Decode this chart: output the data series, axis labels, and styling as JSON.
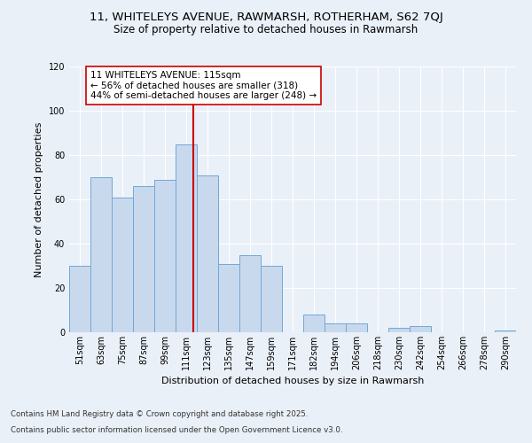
{
  "title_line1": "11, WHITELEYS AVENUE, RAWMARSH, ROTHERHAM, S62 7QJ",
  "title_line2": "Size of property relative to detached houses in Rawmarsh",
  "xlabel": "Distribution of detached houses by size in Rawmarsh",
  "ylabel": "Number of detached properties",
  "categories": [
    "51sqm",
    "63sqm",
    "75sqm",
    "87sqm",
    "99sqm",
    "111sqm",
    "123sqm",
    "135sqm",
    "147sqm",
    "159sqm",
    "171sqm",
    "182sqm",
    "194sqm",
    "206sqm",
    "218sqm",
    "230sqm",
    "242sqm",
    "254sqm",
    "266sqm",
    "278sqm",
    "290sqm"
  ],
  "values": [
    30,
    70,
    61,
    66,
    69,
    85,
    71,
    31,
    35,
    30,
    0,
    8,
    4,
    4,
    0,
    2,
    3,
    0,
    0,
    0,
    1
  ],
  "bar_color": "#c9d9ed",
  "bar_edge_color": "#6fa8d6",
  "vline_color": "#cc0000",
  "vline_x": 5.33,
  "annotation_text": "11 WHITELEYS AVENUE: 115sqm\n← 56% of detached houses are smaller (318)\n44% of semi-detached houses are larger (248) →",
  "annotation_box_color": "#ffffff",
  "annotation_box_edge": "#cc0000",
  "ylim": [
    0,
    120
  ],
  "yticks": [
    0,
    20,
    40,
    60,
    80,
    100,
    120
  ],
  "footer_line1": "Contains HM Land Registry data © Crown copyright and database right 2025.",
  "footer_line2": "Contains public sector information licensed under the Open Government Licence v3.0.",
  "bg_color": "#eaf0f8",
  "plot_bg_color": "#eaf0f8",
  "title_fontsize": 9.5,
  "subtitle_fontsize": 8.5,
  "ylabel_fontsize": 8,
  "xlabel_fontsize": 8,
  "tick_fontsize": 7,
  "annot_fontsize": 7.5,
  "footer_fontsize": 6.2
}
